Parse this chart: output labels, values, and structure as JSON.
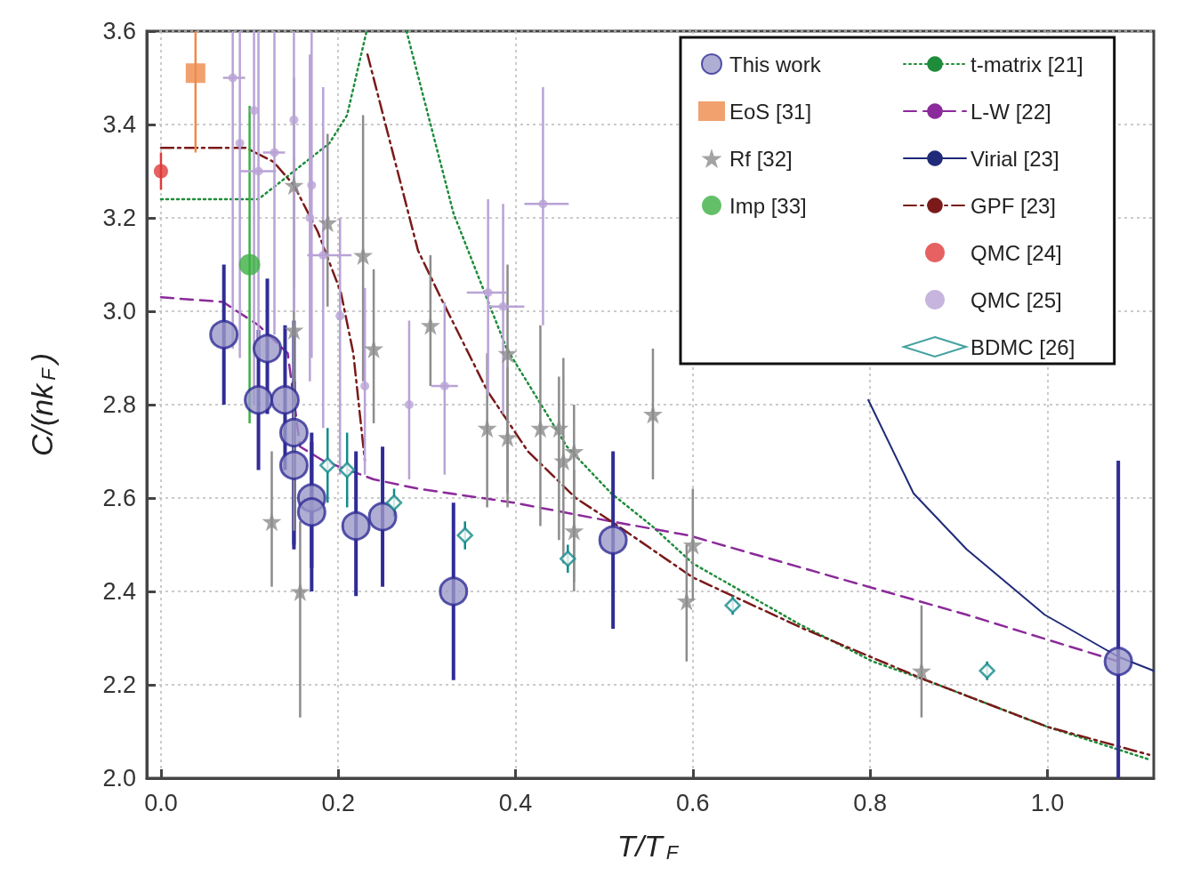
{
  "chart_data": {
    "type": "scatter",
    "xlabel": "T/T$_{F}$",
    "ylabel": "C/(nk$_{F}$)",
    "xlim": [
      -0.016,
      1.12
    ],
    "ylim": [
      2.0,
      3.6
    ],
    "xticks": [
      {
        "value": 0,
        "label": "0.0"
      },
      0.2,
      0.4,
      0.6,
      0.8,
      {
        "value": 1,
        "label": "1.0"
      }
    ],
    "yticks": [
      {
        "value": 2,
        "label": "2.0"
      },
      2.2,
      2.4,
      2.6,
      2.8,
      {
        "value": 3,
        "label": "3.0"
      },
      3.2,
      3.4,
      3.6
    ],
    "grid": true,
    "legend": "top right",
    "series": [
      {
        "name": "This work",
        "color": "#9b99c8",
        "marker": "circle",
        "x": [
          0.071,
          0.11,
          0.12,
          0.14,
          0.15,
          0.15,
          0.17,
          0.17,
          0.22,
          0.25,
          0.33,
          0.51,
          1.08
        ],
        "values": [
          2.95,
          2.81,
          2.92,
          2.81,
          2.74,
          2.67,
          2.6,
          2.57,
          2.54,
          2.56,
          2.4,
          2.51,
          2.25
        ],
        "errors": [
          [
            2.8,
            3.1
          ],
          [
            2.66,
            2.96
          ],
          [
            2.78,
            3.07
          ],
          [
            2.66,
            2.97
          ],
          [
            2.5,
            2.98
          ],
          [
            2.49,
            2.85
          ],
          [
            2.45,
            2.74
          ],
          [
            2.4,
            2.72
          ],
          [
            2.39,
            2.7
          ],
          [
            2.41,
            2.71
          ],
          [
            2.21,
            2.59
          ],
          [
            2.32,
            2.7
          ],
          [
            2.0,
            2.68
          ]
        ]
      },
      {
        "name": "EoS [31]",
        "color": "#ee8a4a",
        "marker": "square",
        "x": [
          0.039
        ],
        "values": [
          3.51
        ],
        "errors": [
          [
            3.34,
            3.6
          ]
        ]
      },
      {
        "name": "Rf [32]",
        "color": "#8c8c8c",
        "marker": "star",
        "x": [
          0.125,
          0.15,
          0.15,
          0.157,
          0.188,
          0.228,
          0.24,
          0.304,
          0.368,
          0.391,
          0.391,
          0.428,
          0.449,
          0.454,
          0.466,
          0.466,
          0.555,
          0.593,
          0.6,
          0.858
        ],
        "values": [
          2.55,
          3.27,
          2.96,
          2.4,
          3.19,
          3.12,
          2.92,
          2.97,
          2.75,
          2.91,
          2.73,
          2.75,
          2.75,
          2.68,
          2.7,
          2.53,
          2.78,
          2.38,
          2.5,
          2.23
        ],
        "errors": [
          [
            2.41,
            2.7
          ],
          [
            3.05,
            3.5
          ],
          [
            2.53,
            3.33
          ],
          [
            2.13,
            2.55
          ],
          [
            3.01,
            3.38
          ],
          [
            2.85,
            3.42
          ],
          [
            2.76,
            3.09
          ],
          [
            2.84,
            3.12
          ],
          [
            2.58,
            2.91
          ],
          [
            2.61,
            3.1
          ],
          [
            2.58,
            2.88
          ],
          [
            2.54,
            2.97
          ],
          [
            2.51,
            2.86
          ],
          [
            2.46,
            2.9
          ],
          [
            2.42,
            2.8
          ],
          [
            2.4,
            2.66
          ],
          [
            2.64,
            2.92
          ],
          [
            2.25,
            2.5
          ],
          [
            2.38,
            2.62
          ],
          [
            2.13,
            2.37
          ]
        ]
      },
      {
        "name": "Imp [33]",
        "color": "#3cb043",
        "marker": "circle",
        "x": [
          0.1
        ],
        "values": [
          3.1
        ],
        "errors": [
          [
            2.76,
            3.44
          ]
        ]
      },
      {
        "name": "t-matrix [21]",
        "type": "line",
        "color": "#1e8c3a",
        "line_style": "dotted",
        "x": [
          0,
          0.11,
          0.15,
          0.19,
          0.21,
          0.232,
          0.25,
          0.277,
          0.33,
          0.39,
          0.458,
          0.508,
          0.554,
          0.6,
          0.72,
          0.803,
          0.863,
          1.0,
          1.115
        ],
        "values": [
          3.24,
          3.24,
          3.3,
          3.36,
          3.42,
          3.6,
          null,
          3.6,
          3.21,
          2.92,
          2.71,
          2.61,
          2.54,
          2.46,
          2.33,
          2.25,
          2.21,
          2.11,
          2.04
        ]
      },
      {
        "name": "L-W [22]",
        "type": "line",
        "color": "#8b2a9a",
        "line_style": "dashed",
        "x": [
          0,
          0.07,
          0.11,
          0.143,
          0.157,
          0.183,
          0.24,
          0.29,
          0.398,
          0.508,
          0.595,
          0.798,
          0.909,
          1.08
        ],
        "values": [
          3.03,
          3.02,
          2.97,
          2.91,
          2.71,
          2.68,
          2.64,
          2.62,
          2.59,
          2.55,
          2.52,
          2.41,
          2.35,
          2.25
        ]
      },
      {
        "name": "Virial [23]",
        "type": "line",
        "color": "#1f2a78",
        "line_style": "solid",
        "x": [
          0.798,
          0.849,
          0.909,
          0.997,
          1.08,
          1.12
        ],
        "values": [
          2.81,
          2.61,
          2.49,
          2.35,
          2.26,
          2.23
        ]
      },
      {
        "name": "GPF [23]",
        "type": "line",
        "color": "#7a1a1a",
        "line_style": "dashed",
        "x": [
          0,
          0.096,
          0.127,
          0.15,
          0.177,
          0.203,
          0.217,
          0.23,
          0.232,
          0.233,
          0.29,
          0.318,
          0.368,
          0.414,
          0.468,
          0.508,
          0.6,
          0.725,
          0.863,
          1.0,
          1.115
        ],
        "values": [
          3.35,
          3.35,
          3.32,
          3.27,
          3.17,
          3.04,
          2.91,
          2.68,
          null,
          3.55,
          3.13,
          3.02,
          2.83,
          2.7,
          2.6,
          2.55,
          2.43,
          2.32,
          2.21,
          2.11,
          2.05
        ]
      },
      {
        "name": "QMC [24]",
        "color": "#e03a3a",
        "marker": "circle",
        "x": [
          0
        ],
        "values": [
          3.3
        ],
        "errors": [
          0.04
        ]
      },
      {
        "name": "QMC [25]",
        "color": "#b9a3d6",
        "marker": "circle",
        "x": [
          0.081,
          0.089,
          0.105,
          0.11,
          0.128,
          0.15,
          0.168,
          0.17,
          0.183,
          0.202,
          0.23,
          0.28,
          0.32,
          0.369,
          0.386,
          0.431
        ],
        "values": [
          3.5,
          3.36,
          3.43,
          3.3,
          3.34,
          3.41,
          3.2,
          3.27,
          3.12,
          2.99,
          2.84,
          2.8,
          2.84,
          3.04,
          3.01,
          3.23
        ],
        "errors": [
          [
            2.92,
            3.6
          ],
          [
            2.9,
            3.6
          ],
          [
            2.8,
            3.6
          ],
          [
            2.9,
            3.6
          ],
          [
            2.95,
            3.6
          ],
          [
            3.0,
            3.6
          ],
          [
            2.85,
            3.55
          ],
          [
            2.9,
            3.6
          ],
          [
            2.75,
            3.48
          ],
          [
            2.65,
            3.2
          ],
          [
            2.65,
            3.05
          ],
          [
            2.64,
            2.98
          ],
          [
            2.65,
            3.02
          ],
          [
            2.82,
            3.24
          ],
          [
            2.78,
            3.23
          ],
          [
            2.97,
            3.48
          ]
        ],
        "xerrors": [
          [
            0.07,
            0.095
          ],
          null,
          null,
          [
            0.09,
            0.13
          ],
          [
            0.115,
            0.14
          ],
          null,
          null,
          null,
          [
            0.165,
            0.215
          ],
          null,
          null,
          null,
          [
            0.305,
            0.335
          ],
          [
            0.345,
            0.39
          ],
          [
            0.37,
            0.41
          ],
          [
            0.41,
            0.46
          ]
        ]
      },
      {
        "name": "BDMC [26]",
        "color": "#138a8a",
        "marker": "diamond",
        "x": [
          0.188,
          0.21,
          0.263,
          0.343,
          0.459,
          0.645,
          0.932
        ],
        "values": [
          2.67,
          2.66,
          2.59,
          2.52,
          2.47,
          2.37,
          2.23
        ],
        "errors": [
          0.08,
          0.08,
          0.03,
          0.03,
          0.03,
          0.02,
          0.02
        ]
      }
    ]
  }
}
